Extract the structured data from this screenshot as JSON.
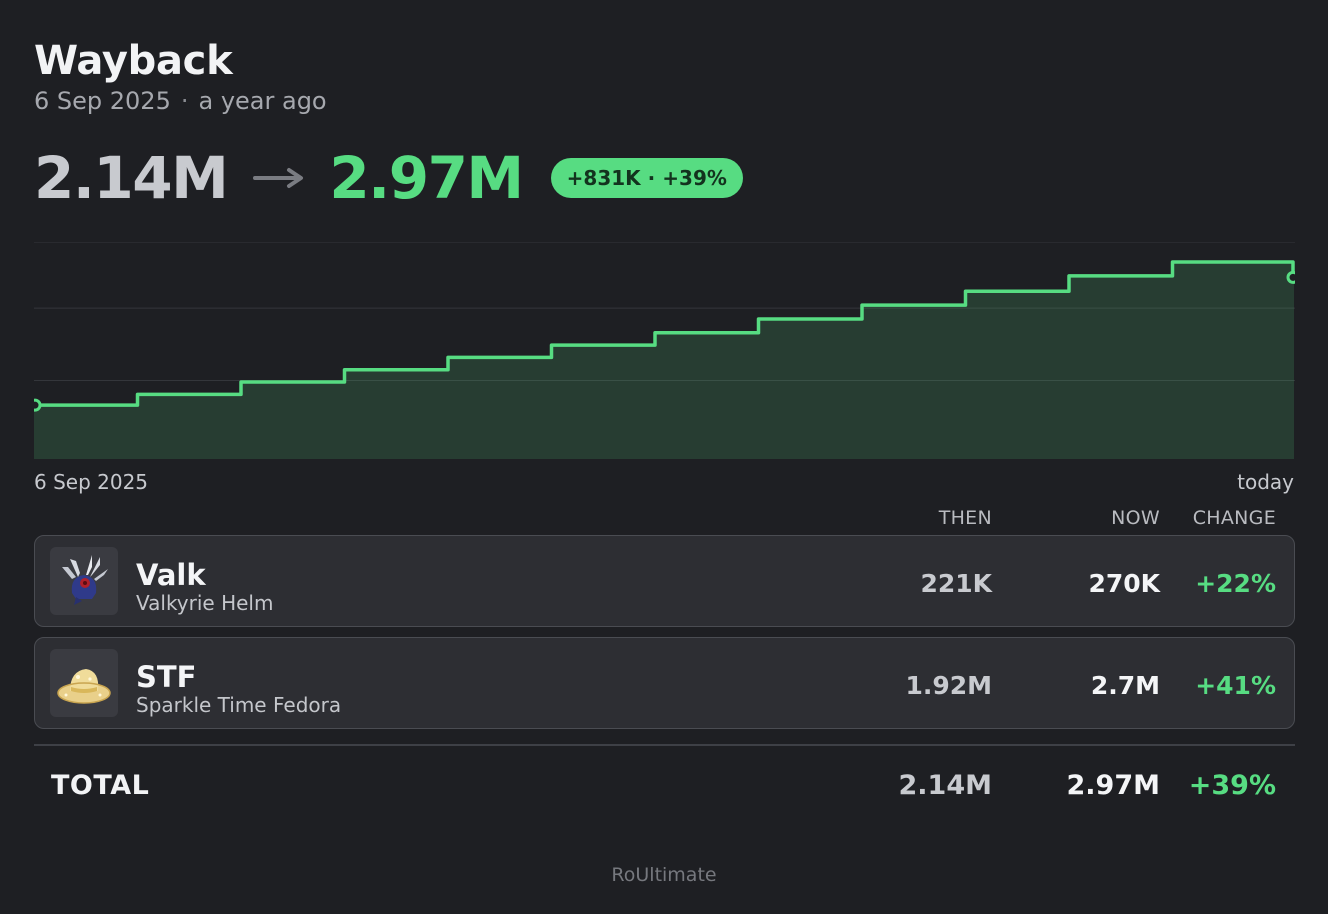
{
  "header": {
    "title": "Wayback",
    "date": "6 Sep 2025",
    "separator": "·",
    "relative": "a year ago"
  },
  "summary": {
    "then": "2.14M",
    "now": "2.97M",
    "delta_abs": "+831K",
    "delta_sep": "·",
    "delta_pct": "+39%"
  },
  "colors": {
    "accent": "#57dc82",
    "background": "#1e1f23",
    "card": "#2d2e33"
  },
  "chart_data": {
    "type": "area",
    "step": true,
    "x_start_label": "6 Sep 2025",
    "x_end_label": "today",
    "y_unit": "M",
    "ylim": [
      1.79,
      3.2
    ],
    "gridlines": [
      2.3,
      2.77,
      3.2
    ],
    "series": [
      {
        "values": [
          2.14,
          2.21,
          2.29,
          2.37,
          2.45,
          2.53,
          2.61,
          2.7,
          2.79,
          2.88,
          2.98,
          3.07,
          3.07,
          2.97
        ]
      }
    ]
  },
  "table": {
    "headers": {
      "then": "THEN",
      "now": "NOW",
      "change": "CHANGE"
    },
    "rows": [
      {
        "name": "Valk",
        "full_name": "Valkyrie Helm",
        "then": "221K",
        "now": "270K",
        "change": "+22%",
        "icon": "valkyrie-helm-icon"
      },
      {
        "name": "STF",
        "full_name": "Sparkle Time Fedora",
        "then": "1.92M",
        "now": "2.7M",
        "change": "+41%",
        "icon": "sparkle-fedora-icon"
      }
    ],
    "total": {
      "label": "TOTAL",
      "then": "2.14M",
      "now": "2.97M",
      "change": "+39%"
    }
  },
  "footer": {
    "brand": "RoUltimate"
  }
}
